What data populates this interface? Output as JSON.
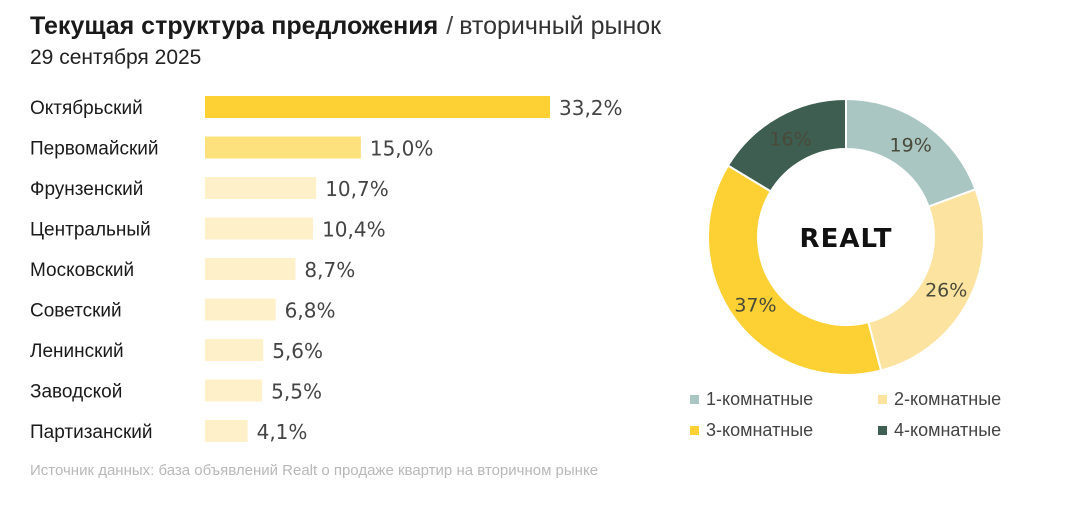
{
  "header": {
    "title": "Текущая структура предложения",
    "separator": "/",
    "subtitle": "вторичный рынок",
    "date": "29 сентября 2025"
  },
  "chart_data": [
    {
      "type": "bar",
      "orientation": "horizontal",
      "categories": [
        "Октябрьский",
        "Первомайский",
        "Фрунзенский",
        "Центральный",
        "Московский",
        "Советский",
        "Ленинский",
        "Заводской",
        "Партизанский"
      ],
      "values": [
        33.2,
        15.0,
        10.7,
        10.4,
        8.7,
        6.8,
        5.6,
        5.5,
        4.1
      ],
      "value_labels": [
        "33,2%",
        "15,0%",
        "10,7%",
        "10,4%",
        "8,7%",
        "6,8%",
        "5,6%",
        "5,5%",
        "4,1%"
      ],
      "colors": [
        "#fdd033",
        "#fde17c",
        "#fef0c8",
        "#fef0c8",
        "#fef0c8",
        "#fef0c8",
        "#fef0c8",
        "#fef0c8",
        "#fef0c8"
      ],
      "unit": "%"
    },
    {
      "type": "pie",
      "variant": "donut",
      "center_label": "REALT",
      "categories": [
        "1-комнатные",
        "2-комнатные",
        "3-комнатные",
        "4-комнатные"
      ],
      "values": [
        19,
        26,
        37,
        16
      ],
      "value_labels": [
        "19%",
        "26%",
        "37%",
        "16%"
      ],
      "colors": [
        "#a9c6c3",
        "#fde3a0",
        "#fdd033",
        "#3d5e50"
      ],
      "legend_position": "bottom"
    }
  ],
  "source": "Источник данных: база объявлений Realt о продаже квартир на вторичном рынке"
}
